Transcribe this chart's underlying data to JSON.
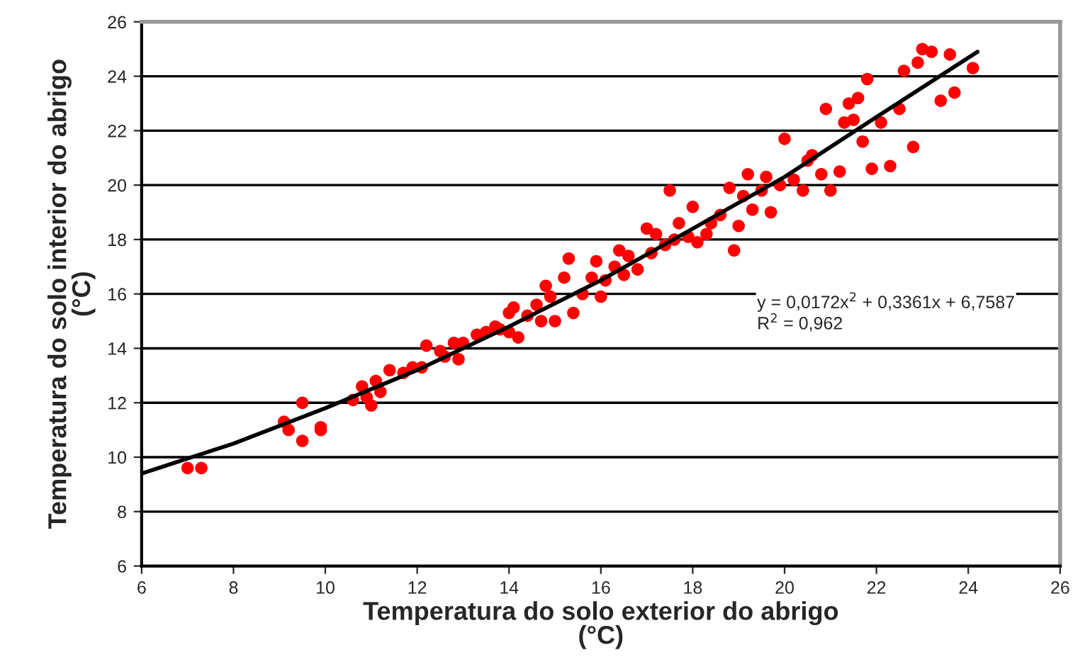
{
  "chart_data": {
    "type": "scatter",
    "xlabel": "Temperatura do solo exterior do abrigo\n(°C)",
    "ylabel": "Temperatura do solo interior do abrigo\n(°C)",
    "xlim": [
      6,
      26
    ],
    "xticks": [
      6,
      8,
      10,
      12,
      14,
      16,
      18,
      20,
      22,
      24,
      26
    ],
    "ylim": [
      6,
      26
    ],
    "yticks": [
      6,
      8,
      10,
      12,
      14,
      16,
      18,
      20,
      22,
      24,
      26
    ],
    "grid": "y",
    "legend": false,
    "annotations": [
      "y = 0,0172x$^{2}$ + 0,3361x + 6,7587",
      "R$^{2}$ = 0,962"
    ],
    "series": [
      {
        "marker": "circle",
        "color": "#ff0000",
        "x": [
          7.0,
          7.3,
          9.1,
          9.2,
          9.5,
          9.5,
          9.9,
          9.9,
          10.6,
          10.8,
          10.9,
          11.0,
          11.1,
          11.2,
          11.4,
          11.7,
          11.9,
          12.1,
          12.2,
          12.5,
          12.6,
          12.8,
          12.9,
          13.0,
          13.3,
          13.5,
          13.7,
          13.8,
          14.0,
          14.0,
          14.1,
          14.2,
          14.4,
          14.6,
          14.7,
          14.8,
          14.9,
          15.0,
          15.2,
          15.3,
          15.4,
          15.6,
          15.8,
          15.9,
          16.0,
          16.1,
          16.3,
          16.4,
          16.5,
          16.6,
          16.8,
          17.0,
          17.1,
          17.2,
          17.4,
          17.5,
          17.6,
          17.7,
          17.9,
          18.0,
          18.1,
          18.3,
          18.4,
          18.6,
          18.8,
          18.9,
          19.0,
          19.1,
          19.2,
          19.3,
          19.5,
          19.6,
          19.7,
          19.9,
          20.0,
          20.2,
          20.4,
          20.5,
          20.6,
          20.8,
          20.9,
          21.0,
          21.2,
          21.3,
          21.4,
          21.5,
          21.6,
          21.7,
          21.8,
          21.9,
          22.1,
          22.3,
          22.5,
          22.6,
          22.8,
          22.9,
          23.0,
          23.2,
          23.4,
          23.6,
          23.7,
          24.1
        ],
        "values": [
          9.6,
          9.6,
          11.3,
          11.0,
          12.0,
          10.6,
          11.1,
          11.0,
          12.1,
          12.6,
          12.2,
          11.9,
          12.8,
          12.4,
          13.2,
          13.1,
          13.3,
          13.3,
          14.1,
          13.9,
          13.7,
          14.2,
          13.6,
          14.2,
          14.5,
          14.6,
          14.8,
          14.7,
          15.3,
          14.6,
          15.5,
          14.4,
          15.2,
          15.6,
          15.0,
          16.3,
          15.9,
          15.0,
          16.6,
          17.3,
          15.3,
          16.0,
          16.6,
          17.2,
          15.9,
          16.5,
          17.0,
          17.6,
          16.7,
          17.4,
          16.9,
          18.4,
          17.5,
          18.2,
          17.8,
          19.8,
          18.0,
          18.6,
          18.1,
          19.2,
          17.9,
          18.2,
          18.6,
          18.9,
          19.9,
          17.6,
          18.5,
          19.6,
          20.4,
          19.1,
          19.8,
          20.3,
          19.0,
          20.0,
          21.7,
          20.2,
          19.8,
          20.9,
          21.1,
          20.4,
          22.8,
          19.8,
          20.5,
          22.3,
          23.0,
          22.4,
          23.2,
          21.6,
          23.9,
          20.6,
          22.3,
          20.7,
          22.8,
          24.2,
          21.4,
          24.5,
          25.0,
          24.9,
          23.1,
          24.8,
          23.4,
          24.3
        ]
      },
      {
        "type": "line",
        "marker": "none",
        "color": "#000000",
        "x": [
          6,
          8,
          10,
          12,
          14,
          16,
          18,
          20,
          22,
          24.2
        ],
        "values": [
          9.4,
          10.5,
          11.8,
          13.2,
          14.8,
          16.5,
          18.4,
          20.3,
          22.5,
          24.9
        ]
      }
    ]
  }
}
